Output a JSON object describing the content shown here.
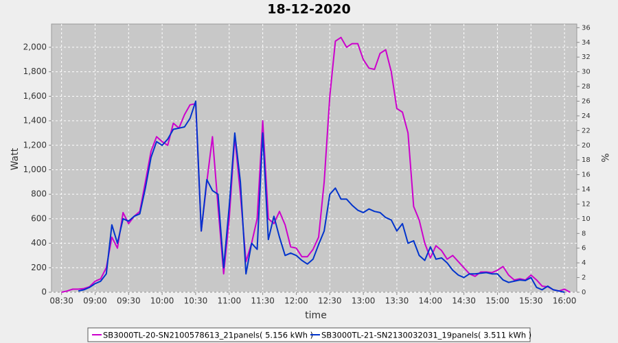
{
  "chart_data": {
    "type": "line",
    "title": "18-12-2020",
    "x_label": "time",
    "y_label": "Watt",
    "y2_label": "%",
    "grid": true,
    "legend": "bottom",
    "xlim": [
      "08:21",
      "16:11"
    ],
    "xticks": [
      "08:30",
      "09:00",
      "09:30",
      "10:00",
      "10:30",
      "11:00",
      "11:30",
      "12:00",
      "12:30",
      "13:00",
      "13:30",
      "14:00",
      "14:30",
      "15:00",
      "15:30",
      "16:00"
    ],
    "ylim": [
      0,
      2190
    ],
    "yticks": [
      0,
      200,
      400,
      600,
      800,
      {
        "value": 1000,
        "label": "1,000"
      },
      {
        "value": 1200,
        "label": "1,200"
      },
      {
        "value": 1400,
        "label": "1,400"
      },
      {
        "value": 1600,
        "label": "1,600"
      },
      {
        "value": 1800,
        "label": "1,800"
      },
      {
        "value": 2000,
        "label": "2,000"
      }
    ],
    "y2lim": [
      0,
      36.5
    ],
    "y2ticks": [
      0,
      2,
      4,
      6,
      8,
      10,
      12,
      14,
      16,
      18,
      20,
      22,
      24,
      26,
      28,
      30,
      32,
      34,
      36
    ],
    "x": [
      "08:30",
      "08:35",
      "08:40",
      "08:45",
      "08:50",
      "08:55",
      "09:00",
      "09:05",
      "09:10",
      "09:15",
      "09:20",
      "09:25",
      "09:30",
      "09:35",
      "09:40",
      "09:45",
      "09:50",
      "09:55",
      "10:00",
      "10:05",
      "10:10",
      "10:15",
      "10:20",
      "10:25",
      "10:30",
      "10:35",
      "10:40",
      "10:45",
      "10:50",
      "10:55",
      "11:00",
      "11:05",
      "11:10",
      "11:15",
      "11:20",
      "11:25",
      "11:30",
      "11:35",
      "11:40",
      "11:45",
      "11:50",
      "11:55",
      "12:00",
      "12:05",
      "12:10",
      "12:15",
      "12:20",
      "12:25",
      "12:30",
      "12:35",
      "12:40",
      "12:45",
      "12:50",
      "12:55",
      "13:00",
      "13:05",
      "13:10",
      "13:15",
      "13:20",
      "13:25",
      "13:30",
      "13:35",
      "13:40",
      "13:45",
      "13:50",
      "13:55",
      "14:00",
      "14:05",
      "14:10",
      "14:15",
      "14:20",
      "14:25",
      "14:30",
      "14:35",
      "14:40",
      "14:45",
      "14:50",
      "14:55",
      "15:00",
      "15:05",
      "15:10",
      "15:15",
      "15:20",
      "15:25",
      "15:30",
      "15:35",
      "15:40",
      "15:45",
      "15:50",
      "15:55",
      "16:00",
      "16:05"
    ],
    "series": [
      {
        "name": "SB3000TL-20-SN2100578613_21panels( 5.156 kWh )",
        "color": "#cc00cc",
        "values": [
          0,
          10,
          25,
          25,
          30,
          45,
          90,
          110,
          200,
          450,
          360,
          650,
          560,
          620,
          660,
          900,
          1150,
          1270,
          1230,
          1200,
          1380,
          1340,
          1450,
          1530,
          1540,
          500,
          900,
          1270,
          700,
          150,
          600,
          1270,
          800,
          250,
          400,
          600,
          1400,
          600,
          560,
          660,
          550,
          370,
          360,
          290,
          290,
          350,
          450,
          900,
          1600,
          2050,
          2080,
          2000,
          2030,
          2030,
          1900,
          1830,
          1820,
          1950,
          1980,
          1800,
          1500,
          1470,
          1300,
          700,
          590,
          400,
          280,
          380,
          340,
          270,
          300,
          250,
          200,
          150,
          130,
          165,
          165,
          160,
          180,
          210,
          140,
          100,
          110,
          100,
          140,
          100,
          50,
          45,
          20,
          10,
          25,
          0
        ]
      },
      {
        "name": "SB3000TL-21-SN2130032031_19panels( 3.511 kWh )",
        "color": "#0033cc",
        "values": [
          null,
          null,
          null,
          10,
          20,
          40,
          70,
          90,
          150,
          550,
          400,
          600,
          580,
          620,
          640,
          850,
          1100,
          1230,
          1200,
          1250,
          1330,
          1340,
          1350,
          1420,
          1560,
          500,
          920,
          830,
          800,
          200,
          700,
          1300,
          900,
          150,
          400,
          350,
          1300,
          430,
          620,
          450,
          300,
          320,
          300,
          260,
          230,
          270,
          390,
          500,
          800,
          850,
          760,
          760,
          710,
          670,
          650,
          680,
          660,
          650,
          610,
          590,
          500,
          560,
          400,
          420,
          300,
          260,
          370,
          270,
          280,
          240,
          180,
          140,
          120,
          150,
          150,
          155,
          160,
          150,
          150,
          100,
          80,
          90,
          100,
          95,
          120,
          40,
          20,
          50,
          20,
          10,
          0,
          null
        ]
      }
    ]
  }
}
